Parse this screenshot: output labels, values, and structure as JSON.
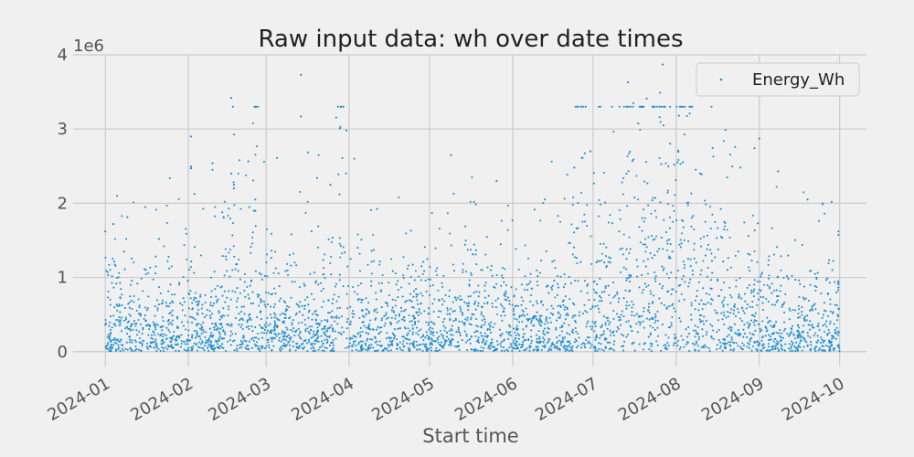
{
  "chart_data": {
    "type": "scatter",
    "title": "Raw input data: wh over date times",
    "xlabel": "Start time",
    "ylabel": "",
    "y_offset_label": "1e6",
    "x_range": [
      "2023-12-20",
      "2024-10-11"
    ],
    "ylim": [
      -0.2,
      4.0
    ],
    "y_ticks": [
      0,
      1,
      2,
      3,
      4
    ],
    "y_tick_labels": [
      "0",
      "1",
      "2",
      "3",
      "4"
    ],
    "x_ticks": [
      "2024-01-01",
      "2024-02-01",
      "2024-03-01",
      "2024-04-01",
      "2024-05-01",
      "2024-06-01",
      "2024-07-01",
      "2024-08-01",
      "2024-09-01",
      "2024-10-01"
    ],
    "x_tick_labels": [
      "2024-01",
      "2024-02",
      "2024-03",
      "2024-04",
      "2024-05",
      "2024-06",
      "2024-07",
      "2024-08",
      "2024-09",
      "2024-10"
    ],
    "grid": true,
    "legend_position": "top-right",
    "series": [
      {
        "name": "Energy_Wh",
        "color": "#1f8fd1",
        "note_visible_outliers": [
          [
            "2024-01-01",
            1.62
          ],
          [
            "2024-01-04",
            1.72
          ],
          [
            "2024-01-08",
            1.35
          ],
          [
            "2024-01-21",
            1.52
          ],
          [
            "2024-02-02",
            2.9
          ],
          [
            "2024-02-02",
            2.47
          ],
          [
            "2024-02-10",
            2.54
          ],
          [
            "2024-02-10",
            2.45
          ],
          [
            "2024-02-17",
            3.42
          ],
          [
            "2024-02-17",
            2.4
          ],
          [
            "2024-02-18",
            2.25
          ],
          [
            "2024-02-18",
            2.2
          ],
          [
            "2024-02-26",
            2.05
          ],
          [
            "2024-02-26",
            1.9
          ],
          [
            "2024-03-14",
            3.73
          ],
          [
            "2024-03-14",
            3.17
          ],
          [
            "2024-03-25",
            2.25
          ],
          [
            "2024-03-28",
            2.39
          ],
          [
            "2024-03-31",
            2.98
          ],
          [
            "2024-04-24",
            1.63
          ],
          [
            "2024-05-09",
            2.65
          ],
          [
            "2024-05-10",
            2.13
          ],
          [
            "2024-05-26",
            2.3
          ],
          [
            "2024-06-13",
            2.05
          ],
          [
            "2024-06-24",
            2.48
          ],
          [
            "2024-06-30",
            2.7
          ],
          [
            "2024-07-14",
            3.63
          ],
          [
            "2024-07-16",
            3.35
          ],
          [
            "2024-07-21",
            3.41
          ],
          [
            "2024-07-26",
            3.49
          ],
          [
            "2024-07-27",
            3.87
          ],
          [
            "2024-08-02",
            3.18
          ],
          [
            "2024-08-10",
            2.4
          ],
          [
            "2024-08-23",
            2.76
          ],
          [
            "2024-08-25",
            2.48
          ],
          [
            "2024-09-01",
            2.87
          ],
          [
            "2024-09-08",
            2.43
          ],
          [
            "2024-09-19",
            2.05
          ],
          [
            "2024-09-28",
            2.02
          ]
        ]
      }
    ]
  }
}
